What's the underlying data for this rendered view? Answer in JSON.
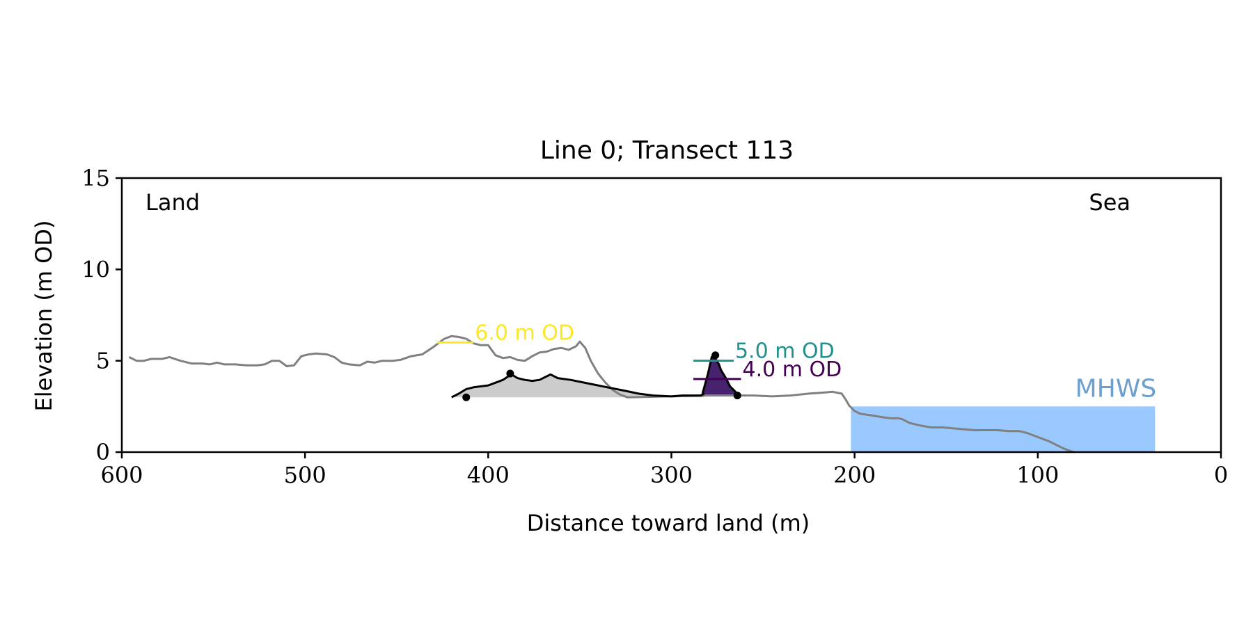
{
  "chart_data": {
    "type": "line",
    "title": "Line 0; Transect 113",
    "xlabel": "Distance toward land (m)",
    "ylabel": "Elevation (m OD)",
    "xlim": [
      600,
      0
    ],
    "ylim": [
      0,
      15
    ],
    "x_ticks": [
      600,
      500,
      400,
      300,
      200,
      100,
      0
    ],
    "y_ticks": [
      0,
      5,
      10,
      15
    ],
    "grid": false,
    "corner_labels": {
      "left": "Land",
      "right": "Sea"
    },
    "mhws": {
      "label": "MHWS",
      "elevation": 2.5,
      "x_start": 202,
      "x_end": 36,
      "color": "#99c9fe",
      "label_color": "#6a9fcf"
    },
    "profile": {
      "color": "#808080",
      "points": [
        [
          596,
          5.2
        ],
        [
          592,
          5.0
        ],
        [
          588,
          5.0
        ],
        [
          584,
          5.1
        ],
        [
          578,
          5.1
        ],
        [
          574,
          5.2
        ],
        [
          568,
          5.0
        ],
        [
          562,
          4.85
        ],
        [
          556,
          4.85
        ],
        [
          552,
          4.8
        ],
        [
          548,
          4.9
        ],
        [
          544,
          4.8
        ],
        [
          538,
          4.8
        ],
        [
          532,
          4.75
        ],
        [
          526,
          4.75
        ],
        [
          522,
          4.8
        ],
        [
          518,
          5.0
        ],
        [
          514,
          5.0
        ],
        [
          510,
          4.7
        ],
        [
          506,
          4.75
        ],
        [
          502,
          5.25
        ],
        [
          498,
          5.35
        ],
        [
          494,
          5.4
        ],
        [
          488,
          5.35
        ],
        [
          484,
          5.2
        ],
        [
          480,
          4.9
        ],
        [
          476,
          4.8
        ],
        [
          470,
          4.75
        ],
        [
          466,
          4.95
        ],
        [
          462,
          4.9
        ],
        [
          458,
          5.0
        ],
        [
          452,
          5.0
        ],
        [
          448,
          5.05
        ],
        [
          442,
          5.25
        ],
        [
          436,
          5.35
        ],
        [
          430,
          5.75
        ],
        [
          424,
          6.2
        ],
        [
          420,
          6.35
        ],
        [
          416,
          6.3
        ],
        [
          412,
          6.2
        ],
        [
          408,
          5.95
        ],
        [
          404,
          5.85
        ],
        [
          400,
          5.85
        ],
        [
          396,
          5.3
        ],
        [
          392,
          5.15
        ],
        [
          388,
          5.2
        ],
        [
          384,
          5.05
        ],
        [
          380,
          5.0
        ],
        [
          376,
          5.25
        ],
        [
          372,
          5.45
        ],
        [
          368,
          5.5
        ],
        [
          364,
          5.65
        ],
        [
          360,
          5.7
        ],
        [
          356,
          5.6
        ],
        [
          352,
          5.8
        ],
        [
          350,
          6.05
        ],
        [
          347,
          5.7
        ],
        [
          344,
          5.0
        ],
        [
          340,
          4.3
        ],
        [
          336,
          3.8
        ],
        [
          332,
          3.4
        ],
        [
          328,
          3.15
        ],
        [
          324,
          3.0
        ],
        [
          280,
          3.1
        ],
        [
          270,
          3.1
        ],
        [
          262,
          3.1
        ],
        [
          255,
          3.1
        ],
        [
          245,
          3.05
        ],
        [
          235,
          3.1
        ],
        [
          225,
          3.2
        ],
        [
          218,
          3.25
        ],
        [
          212,
          3.3
        ],
        [
          207,
          3.2
        ],
        [
          205,
          2.9
        ],
        [
          203,
          2.55
        ],
        [
          200,
          2.25
        ],
        [
          197,
          2.1
        ],
        [
          190,
          2.0
        ],
        [
          184,
          1.9
        ],
        [
          180,
          1.85
        ],
        [
          176,
          1.85
        ],
        [
          174,
          1.8
        ],
        [
          170,
          1.6
        ],
        [
          164,
          1.45
        ],
        [
          158,
          1.35
        ],
        [
          152,
          1.35
        ],
        [
          146,
          1.3
        ],
        [
          140,
          1.25
        ],
        [
          134,
          1.2
        ],
        [
          128,
          1.2
        ],
        [
          122,
          1.2
        ],
        [
          116,
          1.15
        ],
        [
          110,
          1.15
        ],
        [
          106,
          1.05
        ],
        [
          102,
          0.9
        ],
        [
          98,
          0.75
        ],
        [
          94,
          0.6
        ],
        [
          90,
          0.4
        ],
        [
          86,
          0.2
        ],
        [
          82,
          0.05
        ],
        [
          80,
          0.0
        ]
      ]
    },
    "features": [
      {
        "color": "#000000",
        "fill": "#cccccc",
        "base": 3.0,
        "points": [
          [
            420,
            3.0
          ],
          [
            416,
            3.2
          ],
          [
            412,
            3.45
          ],
          [
            408,
            3.55
          ],
          [
            400,
            3.65
          ],
          [
            396,
            3.8
          ],
          [
            392,
            3.95
          ],
          [
            389,
            4.15
          ],
          [
            388,
            4.3
          ],
          [
            384,
            4.05
          ],
          [
            380,
            3.95
          ],
          [
            376,
            3.9
          ],
          [
            372,
            3.95
          ],
          [
            368,
            4.15
          ],
          [
            366,
            4.25
          ],
          [
            362,
            4.05
          ],
          [
            355,
            3.95
          ],
          [
            345,
            3.75
          ],
          [
            335,
            3.55
          ],
          [
            325,
            3.35
          ],
          [
            318,
            3.2
          ],
          [
            310,
            3.1
          ],
          [
            300,
            3.05
          ],
          [
            294,
            3.1
          ],
          [
            284,
            3.1
          ],
          [
            282,
            3.2
          ]
        ],
        "points_marked": [
          [
            412,
            3.0
          ],
          [
            388,
            4.3
          ]
        ]
      },
      {
        "color": "#000000",
        "fill": "#46226f",
        "base": 3.15,
        "points": [
          [
            283,
            3.2
          ],
          [
            280,
            4.3
          ],
          [
            278,
            5.2
          ],
          [
            276,
            5.1
          ],
          [
            274,
            4.8
          ],
          [
            273,
            4.5
          ],
          [
            270,
            4.0
          ],
          [
            268,
            3.6
          ],
          [
            265,
            3.3
          ],
          [
            264,
            3.1
          ]
        ],
        "fill_top": 4.0,
        "points_marked": [
          [
            276,
            5.3
          ],
          [
            264,
            3.1
          ]
        ]
      }
    ],
    "levels": [
      {
        "label": "6.0 m OD",
        "value": 6.0,
        "x_start": 428,
        "x_end": 408,
        "color": "#fde725"
      },
      {
        "label": "5.0 m OD",
        "value": 5.0,
        "x_start": 288,
        "x_end": 266,
        "color": "#21918c"
      },
      {
        "label": "4.0 m OD",
        "value": 4.0,
        "x_start": 288,
        "x_end": 262,
        "color": "#440154"
      }
    ]
  }
}
